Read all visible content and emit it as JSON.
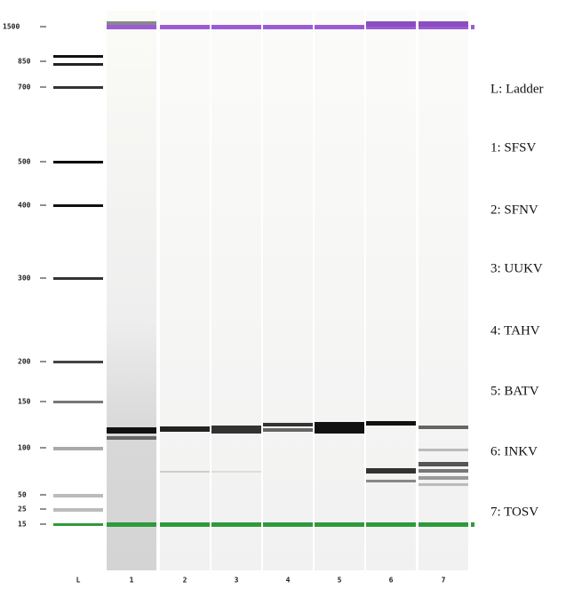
{
  "y_axis": {
    "ticks": [
      "1500",
      "850",
      "700",
      "500",
      "400",
      "300",
      "200",
      "150",
      "100",
      "50",
      "25",
      "15"
    ]
  },
  "lanes": [
    "L",
    "1",
    "2",
    "3",
    "4",
    "5",
    "6",
    "7"
  ],
  "legend": [
    "L: Ladder",
    "1: SFSV",
    "2: SFNV",
    "3: UUKV",
    "4: TAHV",
    "5: BATV",
    "6: INKV",
    "7: TOSV"
  ]
}
